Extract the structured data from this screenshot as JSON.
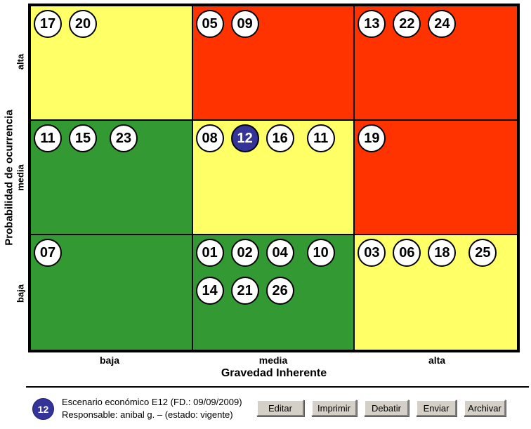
{
  "colors": {
    "yellow": "#FFFF66",
    "red": "#FF3300",
    "green": "#339933",
    "blue": "#333399",
    "white": "#FFFFFF"
  },
  "axes": {
    "y": {
      "title": "Probabilidad de ocurrencia",
      "ticks": [
        "alta",
        "media",
        "baja"
      ]
    },
    "x": {
      "title": "Gravedad Inherente",
      "ticks": [
        "baja",
        "media",
        "alta"
      ]
    }
  },
  "chart_data": {
    "type": "heatmap",
    "title": "",
    "xlabel": "Gravedad Inherente",
    "ylabel": "Probabilidad de ocurrencia",
    "x_categories": [
      "baja",
      "media",
      "alta"
    ],
    "y_categories": [
      "alta",
      "media",
      "baja"
    ],
    "cells": [
      {
        "prob": "alta",
        "grav": "baja",
        "color": "yellow",
        "rows": [
          [
            {
              "id": "17"
            },
            {
              "id": "20"
            }
          ]
        ]
      },
      {
        "prob": "alta",
        "grav": "media",
        "color": "red",
        "rows": [
          [
            {
              "id": "05"
            },
            {
              "id": "09"
            }
          ]
        ]
      },
      {
        "prob": "alta",
        "grav": "alta",
        "color": "red",
        "rows": [
          [
            {
              "id": "13"
            },
            {
              "id": "22"
            },
            {
              "id": "24"
            }
          ]
        ]
      },
      {
        "prob": "media",
        "grav": "baja",
        "color": "green",
        "rows": [
          [
            {
              "id": "11"
            },
            {
              "id": "15"
            },
            {
              "id": "23",
              "gap_before": true
            }
          ]
        ]
      },
      {
        "prob": "media",
        "grav": "media",
        "color": "yellow",
        "rows": [
          [
            {
              "id": "08"
            },
            {
              "id": "12",
              "selected": true
            },
            {
              "id": "16"
            },
            {
              "id": "11",
              "gap_before": true
            }
          ]
        ]
      },
      {
        "prob": "media",
        "grav": "alta",
        "color": "red",
        "rows": [
          [
            {
              "id": "19"
            }
          ]
        ]
      },
      {
        "prob": "baja",
        "grav": "baja",
        "color": "green",
        "rows": [
          [
            {
              "id": "07"
            }
          ]
        ]
      },
      {
        "prob": "baja",
        "grav": "media",
        "color": "green",
        "rows": [
          [
            {
              "id": "01"
            },
            {
              "id": "02"
            },
            {
              "id": "04"
            },
            {
              "id": "10",
              "gap_before": true
            }
          ],
          [
            {
              "id": "14"
            },
            {
              "id": "21"
            },
            {
              "id": "26"
            }
          ]
        ]
      },
      {
        "prob": "baja",
        "grav": "alta",
        "color": "yellow",
        "rows": [
          [
            {
              "id": "03"
            },
            {
              "id": "06"
            },
            {
              "id": "18"
            },
            {
              "id": "25",
              "gap_before": true
            }
          ]
        ]
      }
    ]
  },
  "detail": {
    "selected_id": "12",
    "line1": "Escenario económico E12 (FD.: 09/09/2009)",
    "line2": "Responsable: anibal g. – (estado: vigente)"
  },
  "toolbar": {
    "buttons": [
      {
        "label": "Editar"
      },
      {
        "label": "Imprimir"
      },
      {
        "label": "Debatir"
      },
      {
        "label": "Enviar"
      },
      {
        "label": "Archivar"
      }
    ]
  }
}
